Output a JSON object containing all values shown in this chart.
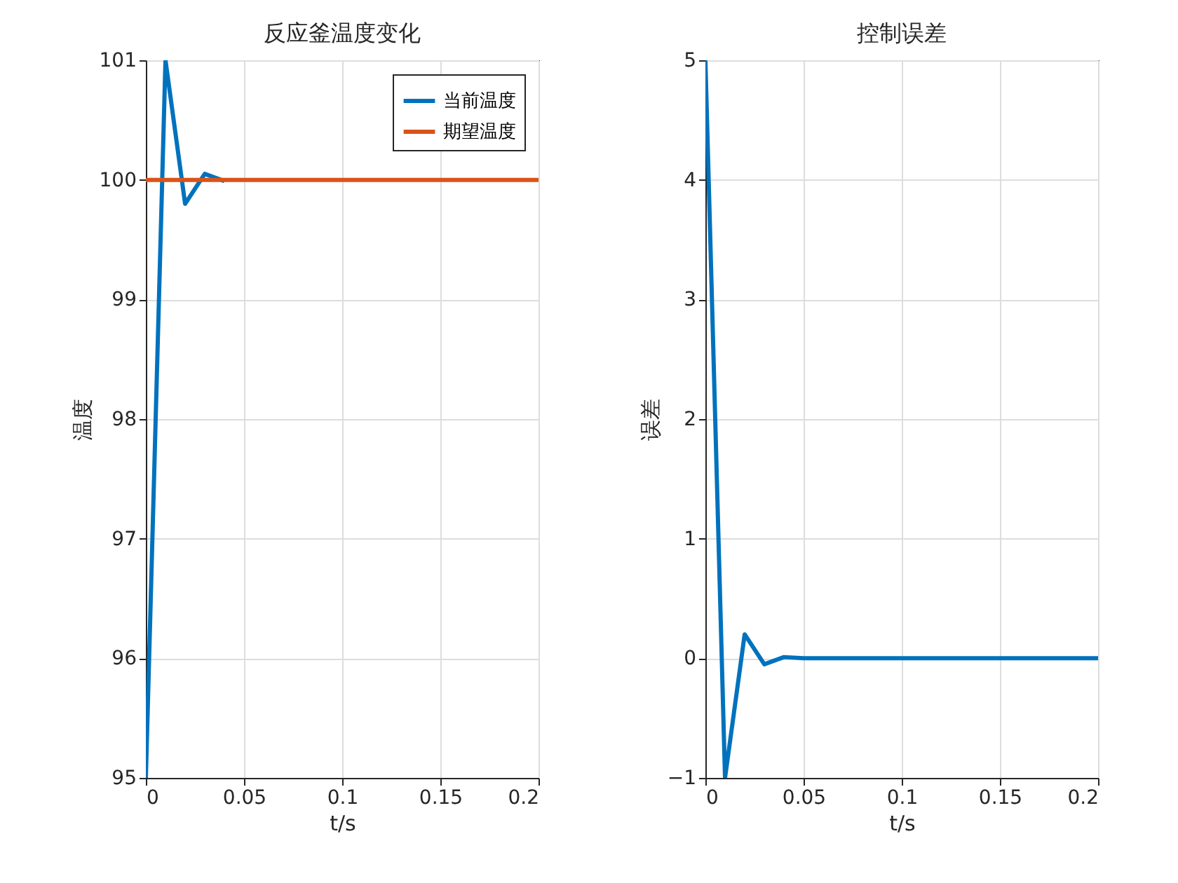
{
  "chart_data": [
    {
      "type": "line",
      "title": "反应釜温度变化",
      "xlabel": "t/s",
      "ylabel": "温度",
      "x": [
        0,
        0.01,
        0.02,
        0.03,
        0.04,
        0.05,
        0.06,
        0.07,
        0.08,
        0.09,
        0.1,
        0.11,
        0.12,
        0.13,
        0.14,
        0.15,
        0.16,
        0.17,
        0.18,
        0.19,
        0.2
      ],
      "series": [
        {
          "name": "当前温度",
          "color": "#0072bd",
          "values": [
            95,
            101,
            99.8,
            100.05,
            99.99,
            null,
            null,
            null,
            null,
            null,
            null,
            null,
            null,
            null,
            null,
            null,
            null,
            null,
            null,
            null,
            null
          ]
        },
        {
          "name": "期望温度",
          "color": "#d95319",
          "values": [
            100,
            100,
            100,
            100,
            100,
            100,
            100,
            100,
            100,
            100,
            100,
            100,
            100,
            100,
            100,
            100,
            100,
            100,
            100,
            100,
            100
          ]
        }
      ],
      "xlim": [
        0,
        0.2
      ],
      "xticks": [
        0,
        0.05,
        0.1,
        0.15,
        0.2
      ],
      "ylim": [
        95,
        101
      ],
      "yticks": [
        95,
        96,
        97,
        98,
        99,
        100,
        101
      ],
      "grid": true,
      "legend": "top right",
      "line_style": "solid"
    },
    {
      "type": "line",
      "title": "控制误差",
      "xlabel": "t/s",
      "ylabel": "误差",
      "x": [
        0,
        0.01,
        0.02,
        0.03,
        0.04,
        0.05,
        0.06,
        0.07,
        0.08,
        0.09,
        0.1,
        0.11,
        0.12,
        0.13,
        0.14,
        0.15,
        0.16,
        0.17,
        0.18,
        0.19,
        0.2
      ],
      "series": [
        {
          "color": "#0072bd",
          "values": [
            5,
            -1,
            0.2,
            -0.05,
            0.01,
            0,
            0,
            0,
            0,
            0,
            0,
            0,
            0,
            0,
            0,
            0,
            0,
            0,
            0,
            0,
            0
          ]
        }
      ],
      "xlim": [
        0,
        0.2
      ],
      "xticks": [
        0,
        0.05,
        0.1,
        0.15,
        0.2
      ],
      "ylim": [
        -1,
        5
      ],
      "yticks": [
        -1,
        0,
        1,
        2,
        3,
        4,
        5
      ],
      "grid": true,
      "line_style": "solid"
    }
  ]
}
